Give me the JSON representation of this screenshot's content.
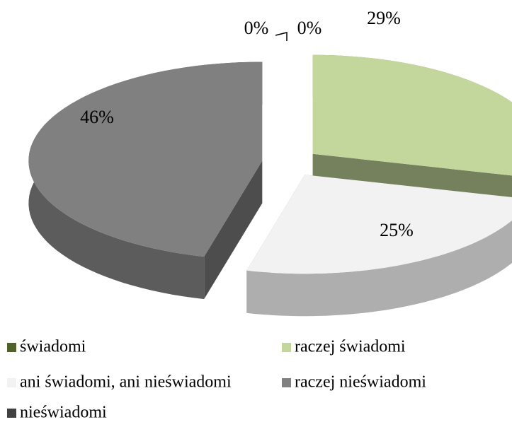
{
  "chart_data": {
    "type": "pie",
    "categories": [
      "świadomi",
      "raczej świadomi",
      "ani świadomi, ani nieświadomi",
      "raczej nieświadomi",
      "nieświadomi"
    ],
    "values": [
      0,
      29,
      25,
      46,
      0
    ],
    "value_labels": [
      "0%",
      "29%",
      "25%",
      "46%",
      "0%"
    ],
    "colors": [
      "#4f6228",
      "#c3d69b",
      "#f2f2f2",
      "#808080",
      "#404040"
    ],
    "legend": "bottom"
  }
}
